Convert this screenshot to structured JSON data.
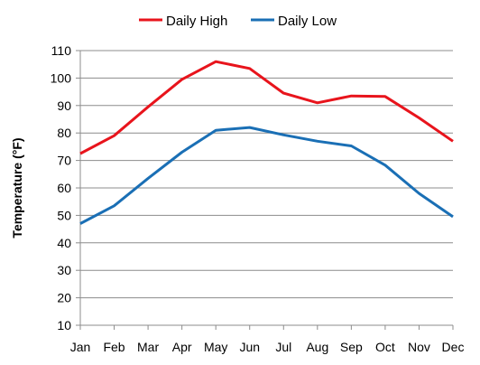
{
  "chart_data": {
    "type": "line",
    "categories": [
      "Jan",
      "Feb",
      "Mar",
      "Apr",
      "May",
      "Jun",
      "Jul",
      "Aug",
      "Sep",
      "Oct",
      "Nov",
      "Dec"
    ],
    "series": [
      {
        "name": "Daily High",
        "color": "#e8141c",
        "values": [
          72.5,
          79,
          89.5,
          99.5,
          106,
          103.5,
          94.5,
          91,
          93.5,
          93.3,
          85.5,
          77
        ]
      },
      {
        "name": "Daily Low",
        "color": "#1a6fb5",
        "values": [
          47,
          53.5,
          63.5,
          73,
          81,
          82,
          79.3,
          77,
          75.3,
          68.3,
          58,
          49.5
        ]
      }
    ],
    "title": "",
    "xlabel": "",
    "ylabel": "Temperature (°F)",
    "ylim": [
      10,
      110
    ],
    "yticks": [
      10,
      20,
      30,
      40,
      50,
      60,
      70,
      80,
      90,
      100,
      110
    ],
    "grid": true,
    "legend_position": "top-center"
  }
}
